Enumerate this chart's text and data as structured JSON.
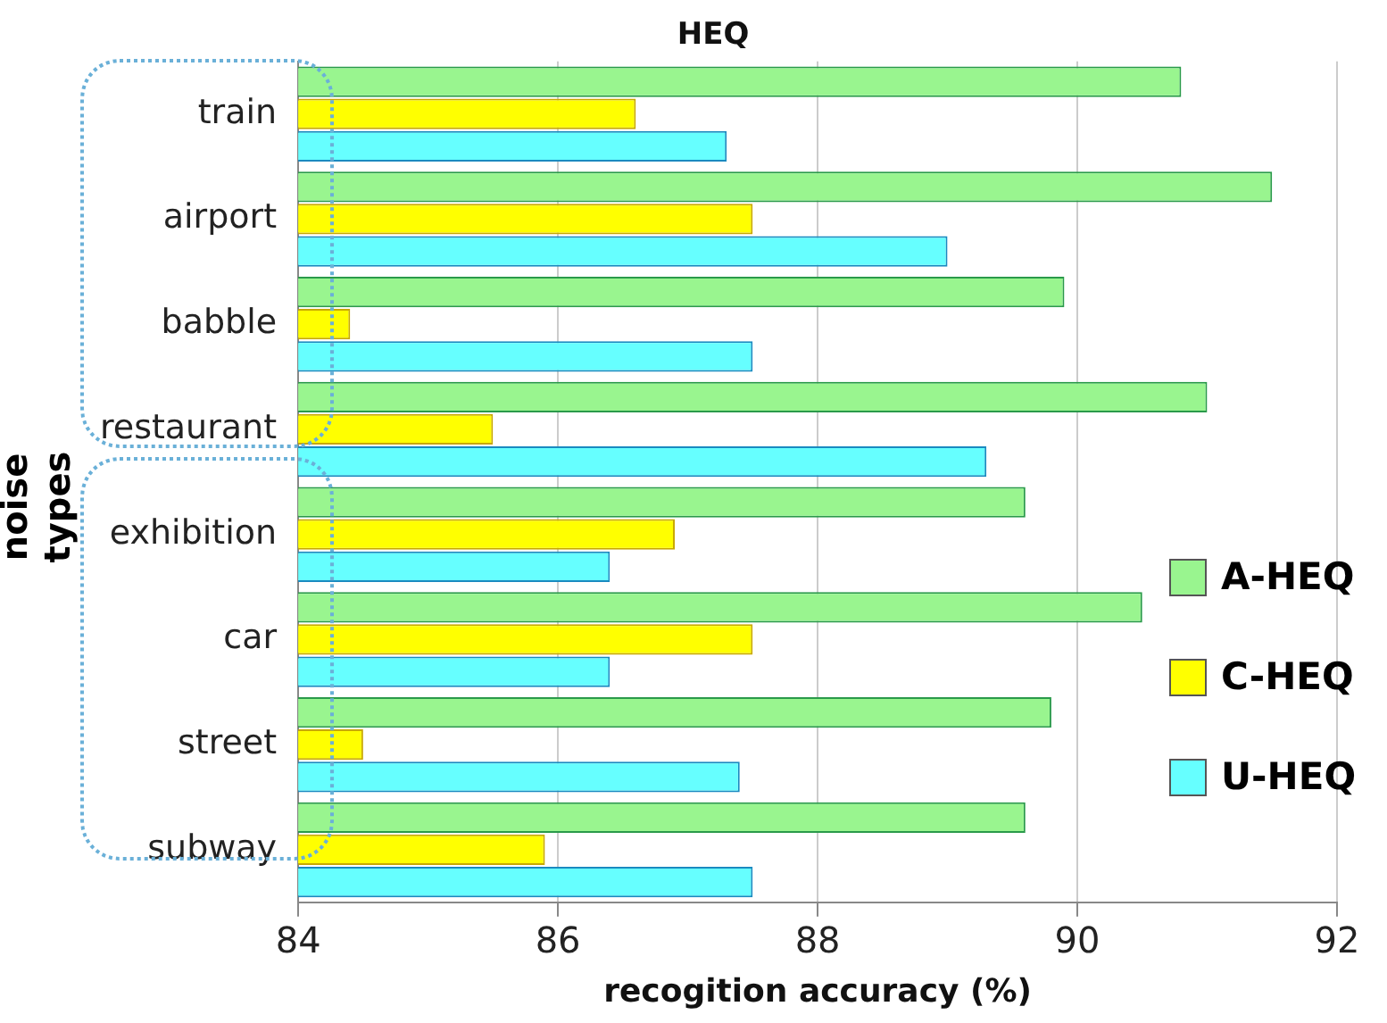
{
  "chart_data": {
    "type": "bar",
    "orientation": "horizontal",
    "title": "HEQ",
    "xlabel": "recogition accuracy (%)",
    "ylabel": "noise types",
    "categories": [
      "train",
      "airport",
      "babble",
      "restaurant",
      "exhibition",
      "car",
      "street",
      "subway"
    ],
    "series": [
      {
        "name": "A-HEQ",
        "color": "#99f58f",
        "values": [
          90.8,
          91.5,
          89.9,
          91.0,
          89.6,
          90.5,
          89.8,
          89.6
        ]
      },
      {
        "name": "C-HEQ",
        "color": "#ffff00",
        "values": [
          86.6,
          87.5,
          84.4,
          85.5,
          86.9,
          87.5,
          84.5,
          85.9
        ]
      },
      {
        "name": "U-HEQ",
        "color": "#66ffff",
        "values": [
          87.3,
          89.0,
          87.5,
          89.3,
          86.4,
          86.4,
          87.4,
          87.5
        ]
      }
    ],
    "xlim": [
      84,
      92
    ],
    "xticks": [
      84,
      86,
      88,
      90,
      92
    ],
    "grid": "x",
    "legend": "right"
  }
}
